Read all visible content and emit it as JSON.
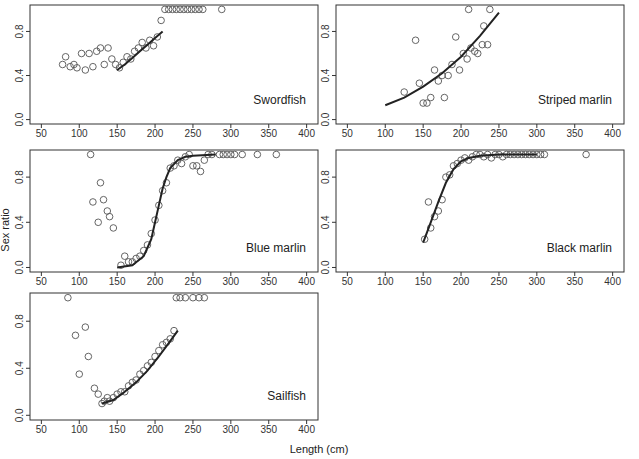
{
  "x_label": "Length (cm)",
  "y_label": "Sex ratio",
  "chart_data": [
    {
      "type": "scatter",
      "title": "Swordfish",
      "xlim": [
        35,
        415
      ],
      "ylim": [
        -0.04,
        1.04
      ],
      "xticks": [
        50,
        100,
        150,
        200,
        250,
        300,
        350,
        400
      ],
      "yticks": [
        {
          "value": 0,
          "label": "0.0"
        },
        {
          "value": 0.4,
          "label": "0.4"
        },
        {
          "value": 0.8,
          "label": "0.8"
        }
      ],
      "series": [
        {
          "type": "scatter",
          "marker": "circle",
          "color": "#555555",
          "x": [
            78,
            82,
            88,
            93,
            97,
            103,
            108,
            113,
            118,
            123,
            128,
            133,
            138,
            143,
            148,
            153,
            158,
            163,
            168,
            173,
            178,
            183,
            188,
            193,
            198,
            203,
            208,
            213,
            218,
            223,
            228,
            233,
            238,
            243,
            248,
            253,
            258,
            263,
            288
          ],
          "values": [
            0.5,
            0.57,
            0.48,
            0.5,
            0.47,
            0.6,
            0.45,
            0.6,
            0.48,
            0.62,
            0.65,
            0.5,
            0.65,
            0.55,
            0.5,
            0.47,
            0.52,
            0.57,
            0.55,
            0.62,
            0.65,
            0.7,
            0.65,
            0.72,
            0.67,
            0.75,
            0.9,
            1,
            1,
            1,
            1,
            1,
            1,
            1,
            1,
            1,
            1,
            1,
            1
          ]
        },
        {
          "type": "line",
          "line_style": "solid",
          "color": "#222222",
          "x": [
            150,
            160,
            170,
            180,
            190,
            200,
            210
          ],
          "values": [
            0.45,
            0.5,
            0.56,
            0.62,
            0.68,
            0.74,
            0.8
          ]
        }
      ]
    },
    {
      "type": "scatter",
      "title": "Striped marlin",
      "xlim": [
        35,
        415
      ],
      "ylim": [
        -0.04,
        1.04
      ],
      "xticks": [
        50,
        100,
        150,
        200,
        250,
        300,
        350,
        400
      ],
      "yticks": [
        {
          "value": 0,
          "label": "0.0"
        },
        {
          "value": 0.4,
          "label": "0.4"
        },
        {
          "value": 0.8,
          "label": "0.8"
        }
      ],
      "series": [
        {
          "type": "scatter",
          "marker": "circle",
          "color": "#555555",
          "x": [
            125,
            140,
            145,
            150,
            155,
            160,
            165,
            170,
            175,
            178,
            183,
            188,
            193,
            198,
            203,
            208,
            210,
            213,
            218,
            222,
            228,
            230,
            235,
            238
          ],
          "values": [
            0.25,
            0.72,
            0.33,
            0.15,
            0.15,
            0.2,
            0.45,
            0.35,
            0.4,
            0.2,
            0.4,
            0.5,
            0.75,
            0.45,
            0.6,
            0.55,
            1.0,
            0.65,
            0.62,
            0.6,
            0.68,
            0.85,
            0.68,
            1.0
          ]
        },
        {
          "type": "line",
          "line_style": "solid",
          "color": "#222222",
          "x": [
            100,
            125,
            150,
            175,
            200,
            225,
            250
          ],
          "values": [
            0.13,
            0.2,
            0.3,
            0.42,
            0.57,
            0.76,
            0.97
          ]
        }
      ]
    },
    {
      "type": "scatter",
      "title": "Blue marlin",
      "xlim": [
        35,
        415
      ],
      "ylim": [
        -0.04,
        1.04
      ],
      "xticks": [
        50,
        100,
        150,
        200,
        250,
        300,
        350,
        400
      ],
      "yticks": [
        {
          "value": 0,
          "label": "0.0"
        },
        {
          "value": 0.4,
          "label": "0.4"
        },
        {
          "value": 0.8,
          "label": "0.8"
        }
      ],
      "series": [
        {
          "type": "scatter",
          "marker": "circle",
          "color": "#555555",
          "x": [
            115,
            118,
            125,
            128,
            132,
            137,
            140,
            145,
            155,
            160,
            165,
            170,
            175,
            180,
            185,
            190,
            195,
            200,
            205,
            210,
            215,
            220,
            225,
            230,
            235,
            240,
            245,
            250,
            255,
            260,
            265,
            270,
            275,
            285,
            290,
            295,
            300,
            305,
            315,
            335,
            360
          ],
          "values": [
            1.0,
            0.58,
            0.4,
            0.75,
            0.6,
            0.5,
            0.45,
            0.35,
            0.02,
            0.1,
            0.05,
            0.05,
            0.08,
            0.1,
            0.15,
            0.2,
            0.3,
            0.42,
            0.55,
            0.68,
            0.75,
            0.88,
            0.9,
            0.95,
            0.92,
            0.98,
            1,
            0.9,
            0.9,
            0.85,
            0.95,
            1,
            1,
            1,
            1,
            1,
            1,
            1,
            1,
            1,
            1
          ]
        },
        {
          "type": "line",
          "line_style": "solid",
          "color": "#222222",
          "x": [
            150,
            170,
            185,
            195,
            200,
            205,
            210,
            215,
            220,
            230,
            240,
            250,
            280
          ],
          "values": [
            0,
            0.02,
            0.1,
            0.25,
            0.4,
            0.55,
            0.7,
            0.8,
            0.88,
            0.95,
            0.98,
            0.99,
            1
          ]
        }
      ]
    },
    {
      "type": "scatter",
      "title": "Black marlin",
      "xlim": [
        35,
        415
      ],
      "ylim": [
        -0.04,
        1.04
      ],
      "xticks": [
        50,
        100,
        150,
        200,
        250,
        300,
        350,
        400
      ],
      "yticks": [
        {
          "value": 0,
          "label": "0.0"
        },
        {
          "value": 0.4,
          "label": "0.4"
        },
        {
          "value": 0.8,
          "label": "0.8"
        }
      ],
      "series": [
        {
          "type": "scatter",
          "marker": "circle",
          "color": "#555555",
          "x": [
            152,
            157,
            160,
            165,
            170,
            175,
            180,
            185,
            190,
            195,
            200,
            205,
            210,
            215,
            220,
            225,
            230,
            235,
            240,
            245,
            250,
            255,
            260,
            265,
            270,
            275,
            280,
            285,
            290,
            295,
            300,
            305,
            310,
            365
          ],
          "values": [
            0.25,
            0.58,
            0.35,
            0.45,
            0.5,
            0.6,
            0.8,
            0.82,
            0.9,
            0.92,
            0.95,
            0.97,
            0.95,
            0.98,
            1,
            1,
            0.98,
            1,
            0.97,
            1,
            1,
            0.98,
            1,
            1,
            1,
            1,
            1,
            1,
            1,
            1,
            1,
            1,
            1,
            1
          ]
        },
        {
          "type": "line",
          "line_style": "solid",
          "color": "#222222",
          "x": [
            150,
            160,
            170,
            180,
            190,
            200,
            210,
            225,
            250,
            275,
            300
          ],
          "values": [
            0.22,
            0.4,
            0.58,
            0.75,
            0.87,
            0.94,
            0.97,
            0.99,
            1,
            1,
            1
          ]
        }
      ]
    },
    {
      "type": "scatter",
      "title": "Sailfish",
      "xlim": [
        35,
        415
      ],
      "ylim": [
        -0.04,
        1.04
      ],
      "xticks": [
        50,
        100,
        150,
        200,
        250,
        300,
        350,
        400
      ],
      "yticks": [
        {
          "value": 0,
          "label": "0.0"
        },
        {
          "value": 0.4,
          "label": "0.4"
        },
        {
          "value": 0.8,
          "label": "0.8"
        }
      ],
      "series": [
        {
          "type": "scatter",
          "marker": "circle",
          "color": "#555555",
          "x": [
            85,
            95,
            100,
            108,
            112,
            120,
            125,
            130,
            133,
            137,
            140,
            145,
            150,
            155,
            160,
            165,
            170,
            175,
            180,
            185,
            190,
            195,
            200,
            205,
            210,
            215,
            220,
            225,
            228,
            233,
            240,
            250,
            258,
            265
          ],
          "values": [
            1.0,
            0.68,
            0.35,
            0.75,
            0.5,
            0.23,
            0.18,
            0.1,
            0.12,
            0.15,
            0.12,
            0.15,
            0.18,
            0.2,
            0.2,
            0.25,
            0.28,
            0.3,
            0.35,
            0.38,
            0.42,
            0.45,
            0.5,
            0.55,
            0.6,
            0.62,
            0.65,
            0.72,
            1,
            1,
            1,
            1,
            1,
            1
          ]
        },
        {
          "type": "line",
          "line_style": "solid",
          "color": "#222222",
          "x": [
            130,
            145,
            160,
            175,
            190,
            205,
            220,
            230
          ],
          "values": [
            0.1,
            0.13,
            0.2,
            0.28,
            0.38,
            0.5,
            0.63,
            0.72
          ]
        }
      ]
    }
  ]
}
